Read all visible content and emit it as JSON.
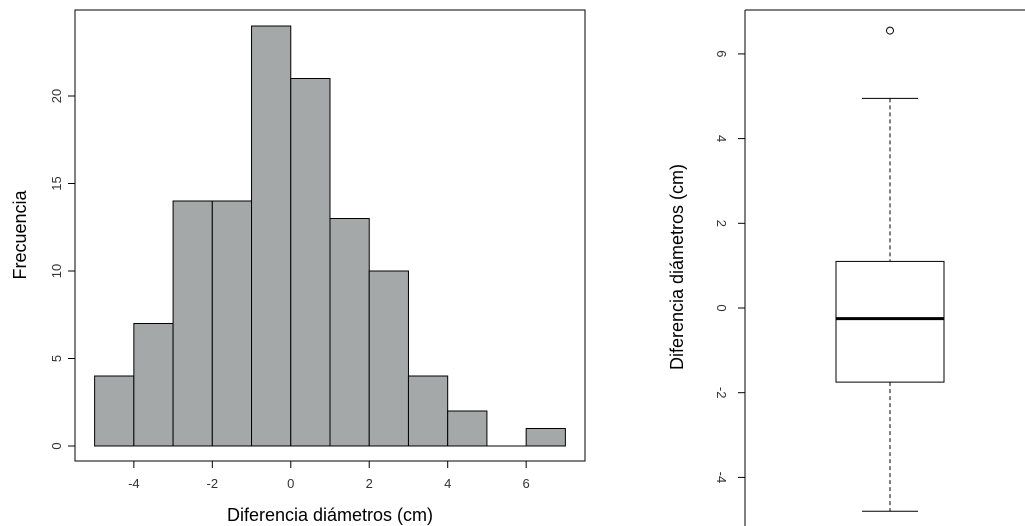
{
  "chart_data": [
    {
      "type": "bar",
      "subtype": "histogram",
      "title": "",
      "xlabel": "Diferencia diámetros (cm)",
      "ylabel": "Frecuencia",
      "bins": [
        {
          "from": -5,
          "to": -4,
          "count": 4
        },
        {
          "from": -4,
          "to": -3,
          "count": 7
        },
        {
          "from": -3,
          "to": -2,
          "count": 14
        },
        {
          "from": -2,
          "to": -1,
          "count": 14
        },
        {
          "from": -1,
          "to": 0,
          "count": 24
        },
        {
          "from": 0,
          "to": 1,
          "count": 21
        },
        {
          "from": 1,
          "to": 2,
          "count": 13
        },
        {
          "from": 2,
          "to": 3,
          "count": 10
        },
        {
          "from": 3,
          "to": 4,
          "count": 4
        },
        {
          "from": 4,
          "to": 5,
          "count": 2
        },
        {
          "from": 5,
          "to": 6,
          "count": 0
        },
        {
          "from": 6,
          "to": 7,
          "count": 1
        }
      ],
      "xticks": [
        "-4",
        "-2",
        "0",
        "2",
        "4",
        "6"
      ],
      "yticks": [
        "0",
        "5",
        "10",
        "15",
        "20"
      ],
      "xlim": [
        -5.5,
        7.5
      ],
      "ylim": [
        0,
        24.9
      ],
      "bar_color": "#a5a8a8",
      "grid": false
    },
    {
      "type": "boxplot",
      "title": "",
      "ylabel": "Diferencia diámetros (cm)",
      "whisker_low": -4.8,
      "q1": -1.75,
      "median": -0.25,
      "q3": 1.1,
      "whisker_high": 4.95,
      "outliers": [
        6.55
      ],
      "yticks": [
        "-4",
        "-2",
        "0",
        "2",
        "4",
        "6"
      ],
      "ylim": [
        -5.2,
        7.0
      ],
      "grid": false
    }
  ]
}
